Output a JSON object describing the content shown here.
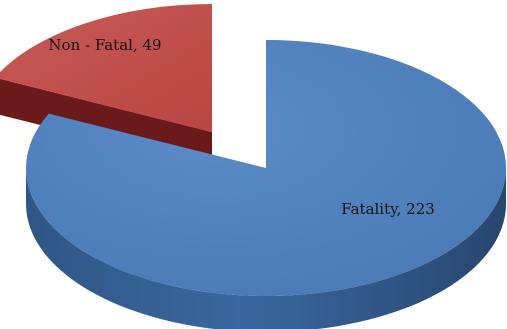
{
  "chart_data": {
    "type": "pie",
    "style": "3d-exploded",
    "slices": [
      {
        "category": "Fatality",
        "value": 223,
        "color": "#4F81BD",
        "label": "Fatality, 223"
      },
      {
        "category": "Non - Fatal",
        "value": 49,
        "color": "#C0504D",
        "label": "Non - Fatal, 49"
      }
    ]
  }
}
